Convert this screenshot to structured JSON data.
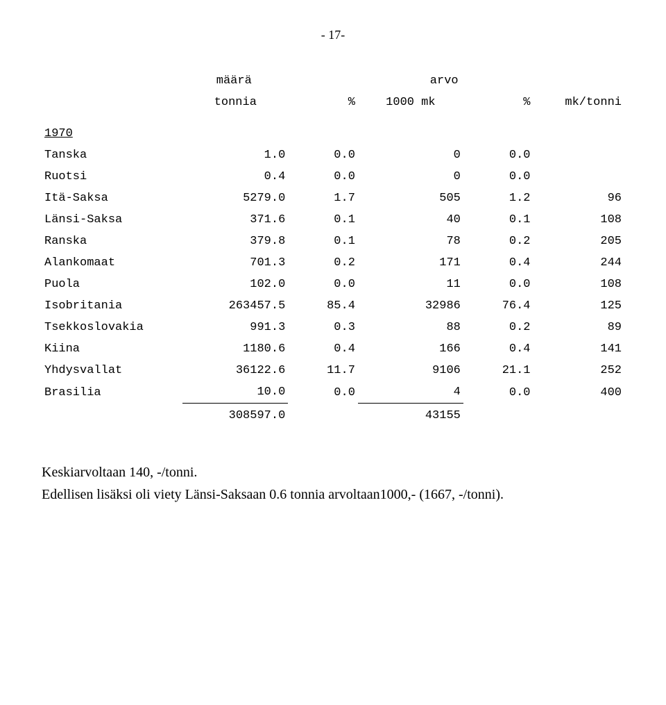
{
  "page_number_label": "- 17-",
  "headers": {
    "group_maara": "määrä",
    "group_arvo": "arvo",
    "tonnia": "tonnia",
    "pct1": "%",
    "mk": "1000 mk",
    "pct2": "%",
    "mktonni": "mk/tonni"
  },
  "year_label": "1970",
  "rows": [
    {
      "label": "Tanska",
      "tonnia": "1.0",
      "pct1": "0.0",
      "mk": "0",
      "pct2": "0.0",
      "mktonni": ""
    },
    {
      "label": "Ruotsi",
      "tonnia": "0.4",
      "pct1": "0.0",
      "mk": "0",
      "pct2": "0.0",
      "mktonni": ""
    },
    {
      "label": "Itä-Saksa",
      "tonnia": "5279.0",
      "pct1": "1.7",
      "mk": "505",
      "pct2": "1.2",
      "mktonni": "96"
    },
    {
      "label": "Länsi-Saksa",
      "tonnia": "371.6",
      "pct1": "0.1",
      "mk": "40",
      "pct2": "0.1",
      "mktonni": "108"
    },
    {
      "label": "Ranska",
      "tonnia": "379.8",
      "pct1": "0.1",
      "mk": "78",
      "pct2": "0.2",
      "mktonni": "205"
    },
    {
      "label": "Alankomaat",
      "tonnia": "701.3",
      "pct1": "0.2",
      "mk": "171",
      "pct2": "0.4",
      "mktonni": "244"
    },
    {
      "label": "Puola",
      "tonnia": "102.0",
      "pct1": "0.0",
      "mk": "11",
      "pct2": "0.0",
      "mktonni": "108"
    },
    {
      "label": "Isobritania",
      "tonnia": "263457.5",
      "pct1": "85.4",
      "mk": "32986",
      "pct2": "76.4",
      "mktonni": "125"
    },
    {
      "label": "Tsekkoslovakia",
      "tonnia": "991.3",
      "pct1": "0.3",
      "mk": "88",
      "pct2": "0.2",
      "mktonni": "89"
    },
    {
      "label": "Kiina",
      "tonnia": "1180.6",
      "pct1": "0.4",
      "mk": "166",
      "pct2": "0.4",
      "mktonni": "141"
    },
    {
      "label": "Yhdysvallat",
      "tonnia": "36122.6",
      "pct1": "11.7",
      "mk": "9106",
      "pct2": "21.1",
      "mktonni": "252"
    },
    {
      "label": "Brasilia",
      "tonnia": "10.0",
      "pct1": "0.0",
      "mk": "4",
      "pct2": "0.0",
      "mktonni": "400"
    }
  ],
  "totals": {
    "tonnia": "308597.0",
    "mk": "43155"
  },
  "note_line_1": "Keskiarvoltaan 140, -/tonni.",
  "note_line_2": "Edellisen lisäksi oli viety Länsi-Saksaan 0.6 tonnia arvoltaan1000,- (1667, -/tonni)."
}
